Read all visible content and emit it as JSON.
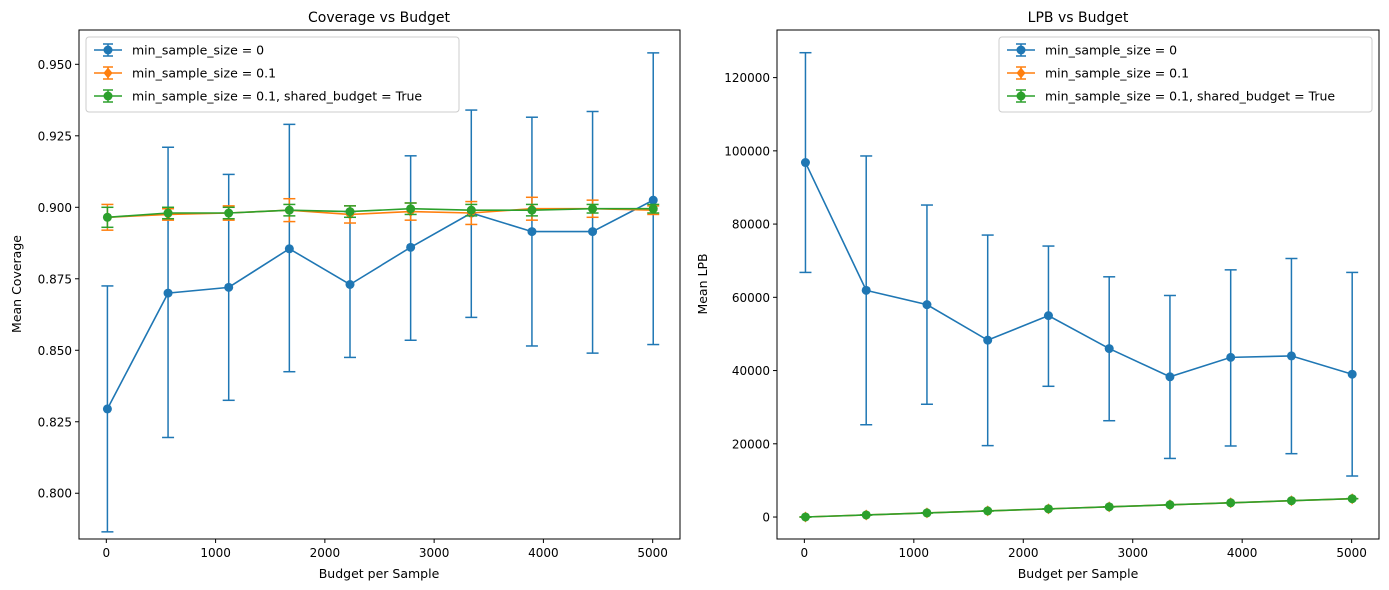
{
  "chart_data": [
    {
      "type": "line",
      "title": "Coverage vs Budget",
      "xlabel": "Budget per Sample",
      "ylabel": "Mean Coverage",
      "xlim": [
        -250,
        5250
      ],
      "ylim": [
        0.784,
        0.962
      ],
      "xticks": [
        0,
        1000,
        2000,
        3000,
        4000,
        5000
      ],
      "xtick_labels": [
        "0",
        "1000",
        "2000",
        "3000",
        "4000",
        "5000"
      ],
      "yticks": [
        0.8,
        0.825,
        0.85,
        0.875,
        0.9,
        0.925,
        0.95
      ],
      "ytick_labels": [
        "0.800",
        "0.825",
        "0.850",
        "0.875",
        "0.900",
        "0.925",
        "0.950"
      ],
      "legend_position": "upper-left",
      "x": [
        10,
        565,
        1120,
        1675,
        2230,
        2785,
        3340,
        3895,
        4450,
        5005
      ],
      "series": [
        {
          "name": "min_sample_size = 0",
          "color": "#1f77b4",
          "marker": "circle",
          "values": [
            0.8295,
            0.87,
            0.872,
            0.8855,
            0.873,
            0.886,
            0.898,
            0.8915,
            0.8915,
            0.9025
          ],
          "err_low": [
            0.7865,
            0.8195,
            0.8325,
            0.8425,
            0.8475,
            0.8535,
            0.8615,
            0.8515,
            0.849,
            0.852
          ],
          "err_high": [
            0.8725,
            0.921,
            0.9115,
            0.929,
            0.8985,
            0.918,
            0.934,
            0.9315,
            0.9335,
            0.954
          ]
        },
        {
          "name": "min_sample_size = 0.1",
          "color": "#ff7f0e",
          "marker": "diamond",
          "values": [
            0.8965,
            0.8975,
            0.898,
            0.899,
            0.8975,
            0.8985,
            0.898,
            0.8995,
            0.8995,
            0.899
          ],
          "err_low": [
            0.892,
            0.8955,
            0.8955,
            0.895,
            0.8945,
            0.8955,
            0.894,
            0.8955,
            0.8965,
            0.8975
          ],
          "err_high": [
            0.901,
            0.8995,
            0.9005,
            0.903,
            0.9005,
            0.9015,
            0.902,
            0.9035,
            0.9025,
            0.9005
          ]
        },
        {
          "name": "min_sample_size = 0.1, shared_budget = True",
          "color": "#2ca02c",
          "marker": "circle",
          "values": [
            0.8965,
            0.898,
            0.898,
            0.899,
            0.8985,
            0.8995,
            0.899,
            0.899,
            0.8995,
            0.8995
          ],
          "err_low": [
            0.893,
            0.896,
            0.896,
            0.897,
            0.8965,
            0.8975,
            0.897,
            0.897,
            0.898,
            0.898
          ],
          "err_high": [
            0.9,
            0.9,
            0.9,
            0.901,
            0.9005,
            0.9015,
            0.901,
            0.901,
            0.901,
            0.901
          ]
        }
      ]
    },
    {
      "type": "line",
      "title": "LPB vs Budget",
      "xlabel": "Budget per Sample",
      "ylabel": "Mean LPB",
      "xlim": [
        -250,
        5250
      ],
      "ylim": [
        -6000,
        133000
      ],
      "xticks": [
        0,
        1000,
        2000,
        3000,
        4000,
        5000
      ],
      "xtick_labels": [
        "0",
        "1000",
        "2000",
        "3000",
        "4000",
        "5000"
      ],
      "yticks": [
        0,
        20000,
        40000,
        60000,
        80000,
        100000,
        120000
      ],
      "ytick_labels": [
        "0",
        "20000",
        "40000",
        "60000",
        "80000",
        "100000",
        "120000"
      ],
      "legend_position": "upper-right",
      "x": [
        10,
        565,
        1120,
        1675,
        2230,
        2785,
        3340,
        3895,
        4450,
        5005
      ],
      "series": [
        {
          "name": "min_sample_size = 0",
          "color": "#1f77b4",
          "marker": "circle",
          "values": [
            96800,
            61900,
            58000,
            48300,
            55000,
            46000,
            38300,
            43600,
            44000,
            39000
          ],
          "err_low": [
            66800,
            25200,
            30800,
            19500,
            35700,
            26300,
            16000,
            19400,
            17300,
            11200
          ],
          "err_high": [
            126800,
            98600,
            85200,
            77000,
            74000,
            65600,
            60500,
            67500,
            70600,
            66800
          ]
        },
        {
          "name": "min_sample_size = 0.1",
          "color": "#ff7f0e",
          "marker": "diamond",
          "values": [
            10,
            565,
            1120,
            1675,
            2230,
            2785,
            3340,
            3895,
            4450,
            5005
          ],
          "err_low": [
            10,
            565,
            1120,
            1675,
            2230,
            2785,
            3340,
            3895,
            4450,
            5005
          ],
          "err_high": [
            10,
            565,
            1120,
            1675,
            2230,
            2785,
            3340,
            3895,
            4450,
            5005
          ]
        },
        {
          "name": "min_sample_size = 0.1, shared_budget = True",
          "color": "#2ca02c",
          "marker": "circle",
          "values": [
            10,
            565,
            1120,
            1675,
            2230,
            2785,
            3340,
            3895,
            4450,
            5005
          ],
          "err_low": [
            10,
            565,
            1120,
            1675,
            2230,
            2785,
            3340,
            3895,
            4450,
            5005
          ],
          "err_high": [
            10,
            565,
            1120,
            1675,
            2230,
            2785,
            3340,
            3895,
            4450,
            5005
          ]
        }
      ]
    }
  ]
}
